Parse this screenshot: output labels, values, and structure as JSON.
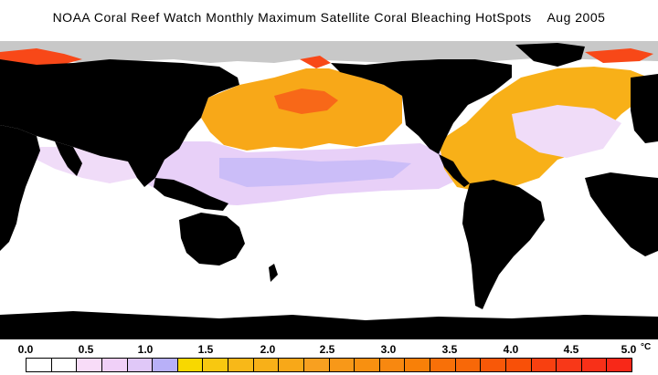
{
  "title": "NOAA Coral Reef Watch Monthly Maximum Satellite Coral Bleaching HotSpots    Aug 2005",
  "colors": {
    "land": "#000000",
    "ocean_zero": "#ffffff",
    "sea_ice": "#c0c0c0",
    "low_light": "#f8dcf8",
    "low_mid": "#e8c8f8",
    "low_high": "#b8b0f8",
    "hot": "#f8a018",
    "hotter": "#f85010"
  },
  "scale": {
    "labels": [
      "0.0",
      "0.5",
      "1.0",
      "1.5",
      "2.0",
      "2.5",
      "3.0",
      "3.5",
      "4.0",
      "4.5",
      "5.0"
    ],
    "unit": "°C",
    "colors": [
      "#ffffff",
      "#ffffff",
      "#f8dcf8",
      "#f0d0f8",
      "#e0c8f8",
      "#b8b0f8",
      "#f8d800",
      "#f8c810",
      "#f8b818",
      "#f8b018",
      "#f8a818",
      "#f8a020",
      "#f89818",
      "#f89010",
      "#f88810",
      "#f88008",
      "#f87008",
      "#f86808",
      "#f85808",
      "#f85008",
      "#f84010",
      "#f83818",
      "#f83018",
      "#f82818"
    ]
  }
}
